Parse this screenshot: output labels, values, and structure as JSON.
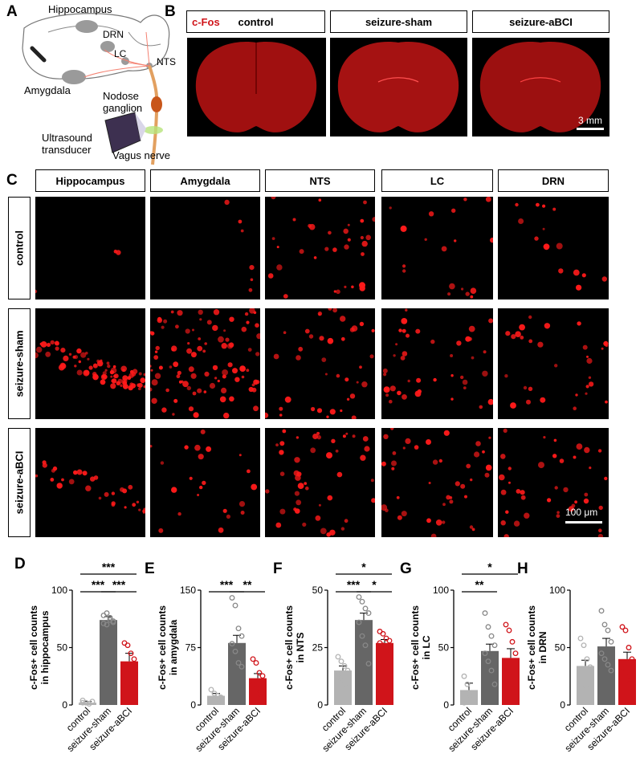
{
  "panels": {
    "A": "A",
    "B": "B",
    "C": "C",
    "D": "D",
    "E": "E",
    "F": "F",
    "G": "G",
    "H": "H"
  },
  "panelA": {
    "labels": {
      "hippocampus": "Hippocampus",
      "drn": "DRN",
      "lc": "LC",
      "nts": "NTS",
      "amygdala": "Amygdala",
      "nodose": "Nodose",
      "ganglion": "ganglion",
      "ultrasound": "Ultrasound",
      "transducer": "transducer",
      "vagus": "Vagus nerve"
    }
  },
  "panelB": {
    "marker": "c-Fos",
    "headers": [
      "control",
      "seizure-sham",
      "seizure-aBCI"
    ],
    "scalebar": "3 mm",
    "stain_color": "#e02020"
  },
  "panelC": {
    "regions": [
      "Hippocampus",
      "Amygdala",
      "NTS",
      "LC",
      "DRN"
    ],
    "conditions": [
      "control",
      "seizure-sham",
      "seizure-aBCI"
    ],
    "scalebar": "100 μm"
  },
  "colors": {
    "control": "#b3b3b3",
    "sham": "#666666",
    "abci": "#d0141a"
  },
  "chart_data": [
    {
      "type": "bar",
      "panel": "D",
      "categories": [
        "control",
        "seizure-sham",
        "seizure-aBCI"
      ],
      "values": [
        2,
        74,
        38
      ],
      "sem": [
        1,
        3,
        7
      ],
      "ylabel": [
        "c-Fos+ cell counts",
        "in hippocampus"
      ],
      "ylim": [
        0,
        100
      ],
      "yticks": [
        0,
        50,
        100
      ],
      "points": [
        [
          4,
          2,
          1,
          3,
          2
        ],
        [
          78,
          80,
          74,
          72,
          71,
          70,
          76,
          73
        ],
        [
          54,
          52,
          45,
          40,
          35,
          30,
          18,
          8
        ]
      ],
      "sig": [
        {
          "from": 0,
          "to": 1,
          "label": "***",
          "level": 1
        },
        {
          "from": 1,
          "to": 2,
          "label": "***",
          "level": 1
        },
        {
          "from": 0,
          "to": 2,
          "label": "***",
          "level": 2
        }
      ]
    },
    {
      "type": "bar",
      "panel": "E",
      "categories": [
        "control",
        "seizure-sham",
        "seizure-aBCI"
      ],
      "values": [
        12,
        81,
        35
      ],
      "sem": [
        3,
        10,
        6
      ],
      "ylabel": [
        "c-Fos+ cell counts",
        "in amygdala"
      ],
      "ylim": [
        0,
        150
      ],
      "yticks": [
        0,
        75,
        150
      ],
      "points": [
        [
          20,
          15,
          12,
          10,
          8,
          6
        ],
        [
          140,
          130,
          100,
          90,
          80,
          70,
          55,
          50
        ],
        [
          60,
          55,
          42,
          38,
          30,
          22,
          15,
          10
        ]
      ],
      "sig": [
        {
          "from": 0,
          "to": 1,
          "label": "***",
          "level": 1
        },
        {
          "from": 1,
          "to": 2,
          "label": "**",
          "level": 1
        }
      ]
    },
    {
      "type": "bar",
      "panel": "F",
      "categories": [
        "control",
        "seizure-sham",
        "seizure-aBCI"
      ],
      "values": [
        15,
        37,
        27
      ],
      "sem": [
        2,
        3,
        1.5
      ],
      "ylabel": [
        "c-Fos+ cell counts",
        "in NTS"
      ],
      "ylim": [
        0,
        50
      ],
      "yticks": [
        0,
        25,
        50
      ],
      "points": [
        [
          21,
          19,
          17,
          15,
          13,
          11,
          9
        ],
        [
          47,
          45,
          42,
          40,
          36,
          30,
          26,
          18
        ],
        [
          32,
          31,
          29,
          28,
          27,
          26,
          25,
          24
        ]
      ],
      "sig": [
        {
          "from": 0,
          "to": 1,
          "label": "***",
          "level": 1
        },
        {
          "from": 1,
          "to": 2,
          "label": "*",
          "level": 1
        },
        {
          "from": 0,
          "to": 2,
          "label": "*",
          "level": 2
        }
      ]
    },
    {
      "type": "bar",
      "panel": "G",
      "categories": [
        "control",
        "seizure-sham",
        "seizure-aBCI"
      ],
      "values": [
        13,
        47,
        41
      ],
      "sem": [
        6,
        6,
        8
      ],
      "ylabel": [
        "c-Fos+ cell counts",
        "in LC"
      ],
      "ylim": [
        0,
        100
      ],
      "yticks": [
        0,
        50,
        100
      ],
      "points": [
        [
          25,
          18,
          8,
          5,
          2
        ],
        [
          80,
          68,
          60,
          52,
          45,
          38,
          30,
          18
        ],
        [
          70,
          65,
          55,
          45,
          38,
          28,
          15,
          8
        ]
      ],
      "sig": [
        {
          "from": 0,
          "to": 1,
          "label": "**",
          "level": 1
        },
        {
          "from": 0,
          "to": 2,
          "label": "*",
          "level": 2
        }
      ]
    },
    {
      "type": "bar",
      "panel": "H",
      "categories": [
        "control",
        "seizure-sham",
        "seizure-aBCI"
      ],
      "values": [
        34,
        51,
        40
      ],
      "sem": [
        5,
        7,
        6
      ],
      "ylabel": [
        "c-Fos+ cell counts",
        "in DRN"
      ],
      "ylim": [
        0,
        100
      ],
      "yticks": [
        0,
        50,
        100
      ],
      "points": [
        [
          58,
          52,
          40,
          33,
          30,
          18,
          15
        ],
        [
          82,
          70,
          65,
          55,
          45,
          40,
          35,
          30
        ],
        [
          68,
          65,
          50,
          40,
          32,
          28,
          22,
          18
        ]
      ],
      "sig": []
    }
  ]
}
